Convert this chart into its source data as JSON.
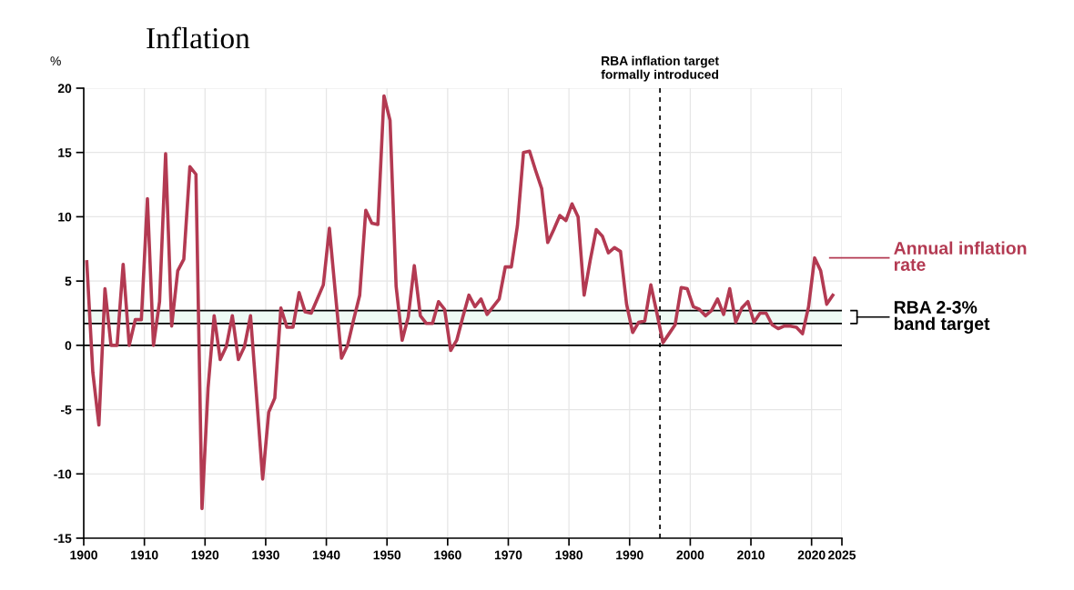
{
  "chart_data": {
    "type": "line",
    "title": "Inflation",
    "ylabel": "%",
    "x": [
      1900.5,
      1901.5,
      1902.5,
      1903.5,
      1904.5,
      1905.5,
      1906.5,
      1907.5,
      1908.5,
      1909.5,
      1910.5,
      1911.5,
      1912.5,
      1913.5,
      1914.5,
      1915.5,
      1916.5,
      1917.5,
      1918.5,
      1919.5,
      1920.5,
      1921.5,
      1922.5,
      1923.5,
      1924.5,
      1925.5,
      1926.5,
      1927.5,
      1928.5,
      1929.5,
      1930.5,
      1931.5,
      1932.5,
      1933.5,
      1934.5,
      1935.5,
      1936.5,
      1937.5,
      1938.5,
      1939.5,
      1940.5,
      1941.5,
      1942.5,
      1943.5,
      1944.5,
      1945.5,
      1946.5,
      1947.5,
      1948.5,
      1949.5,
      1950.5,
      1951.5,
      1952.5,
      1953.5,
      1954.5,
      1955.5,
      1956.5,
      1957.5,
      1958.5,
      1959.5,
      1960.5,
      1961.5,
      1962.5,
      1963.5,
      1964.5,
      1965.5,
      1966.5,
      1967.5,
      1968.5,
      1969.5,
      1970.5,
      1971.5,
      1972.5,
      1973.5,
      1974.5,
      1975.5,
      1976.5,
      1977.5,
      1978.5,
      1979.5,
      1980.5,
      1981.5,
      1982.5,
      1983.5,
      1984.5,
      1985.5,
      1986.5,
      1987.5,
      1988.5,
      1989.5,
      1990.5,
      1991.5,
      1992.5,
      1993.5,
      1994.5,
      1995.5,
      1996.5,
      1997.5,
      1998.5,
      1999.5,
      2000.5,
      2001.5,
      2002.5,
      2003.5,
      2004.5,
      2005.5,
      2006.5,
      2007.5,
      2008.5,
      2009.5,
      2010.5,
      2011.5,
      2012.5,
      2013.5,
      2014.5,
      2015.5,
      2016.5,
      2017.5,
      2018.5,
      2019.5,
      2020.5,
      2021.5,
      2022.5,
      2023.5
    ],
    "series": [
      {
        "name": "Annual inflation rate",
        "color": "#b33a52",
        "values": [
          6.5,
          -2.1,
          -6.2,
          4.4,
          0,
          0,
          6.3,
          0,
          2,
          2,
          11.4,
          0,
          3.4,
          14.9,
          1.5,
          5.8,
          6.7,
          13.9,
          13.3,
          -12.7,
          -3.3,
          2.3,
          -1.1,
          -0.1,
          2.3,
          -1.1,
          -0.1,
          2.3,
          -4.0,
          -10.4,
          -5.2,
          -4.1,
          2.9,
          1.4,
          1.4,
          4.1,
          2.6,
          2.5,
          3.6,
          4.7,
          9.1,
          4.0,
          -1.0,
          0.0,
          2.0,
          3.9,
          10.5,
          9.5,
          9.4,
          19.4,
          17.5,
          4.6,
          0.4,
          2.2,
          6.2,
          2.3,
          1.7,
          1.7,
          3.4,
          2.8,
          -0.4,
          0.4,
          2.2,
          3.9,
          3.0,
          3.6,
          2.4,
          3.0,
          3.6,
          6.1,
          6.1,
          9.3,
          15.0,
          15.1,
          13.6,
          12.2,
          8.0,
          9.0,
          10.1,
          9.7,
          11.0,
          10.0,
          3.9,
          6.6,
          9.0,
          8.5,
          7.2,
          7.6,
          7.3,
          3.2,
          1.0,
          1.8,
          1.9,
          4.7,
          2.5,
          0.2,
          0.9,
          1.6,
          4.5,
          4.4,
          3.0,
          2.8,
          2.3,
          2.7,
          3.6,
          2.4,
          4.4,
          1.8,
          2.9,
          3.4,
          1.8,
          2.5,
          2.5,
          1.6,
          1.3,
          1.5,
          1.5,
          1.4,
          0.9,
          3.0,
          6.8,
          5.8,
          3.2,
          3.9
        ]
      }
    ],
    "xlim": [
      1900,
      2025
    ],
    "xticks": [
      1900,
      1910,
      1920,
      1930,
      1940,
      1950,
      1960,
      1970,
      1980,
      1990,
      2000,
      2010,
      2020,
      2025
    ],
    "ylim": [
      -15,
      20
    ],
    "yticks": [
      -15,
      -10,
      -5,
      0,
      5,
      10,
      15,
      20
    ],
    "ref_lines": [
      {
        "axis": "y",
        "value": 0,
        "color": "#000000",
        "line_style": "solid"
      },
      {
        "axis": "y",
        "value": 1.7,
        "color": "#000000",
        "line_style": "solid"
      },
      {
        "axis": "y",
        "value": 2.7,
        "color": "#000000",
        "line_style": "solid"
      },
      {
        "axis": "x",
        "value": 1995,
        "label": "RBA inflation target\nformally introduced",
        "color": "#000000",
        "line_style": "dashed"
      }
    ],
    "bands": [
      {
        "axis": "y",
        "from": 1.7,
        "to": 2.7,
        "label": "RBA 2-3%\nband target",
        "color": "#eefaf4"
      }
    ],
    "grid": true,
    "legend": "right",
    "marker": "none",
    "line_style": "solid"
  }
}
